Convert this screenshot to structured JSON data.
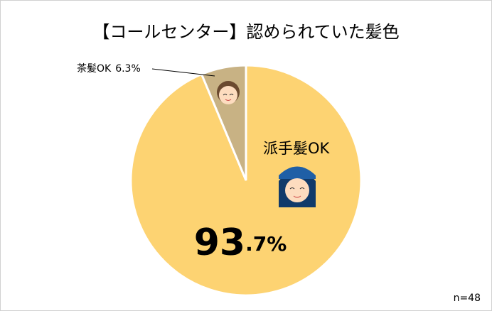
{
  "chart_data": {
    "type": "pie",
    "title": "【コールセンター】認められていた髪色",
    "categories": [
      "派手髪OK",
      "茶髪OK"
    ],
    "values": [
      93.7,
      6.3
    ],
    "value_labels": [
      "93.7%",
      "6.3%"
    ],
    "colors": [
      "#fdd372",
      "#c8b284"
    ],
    "note": "n=48"
  }
}
